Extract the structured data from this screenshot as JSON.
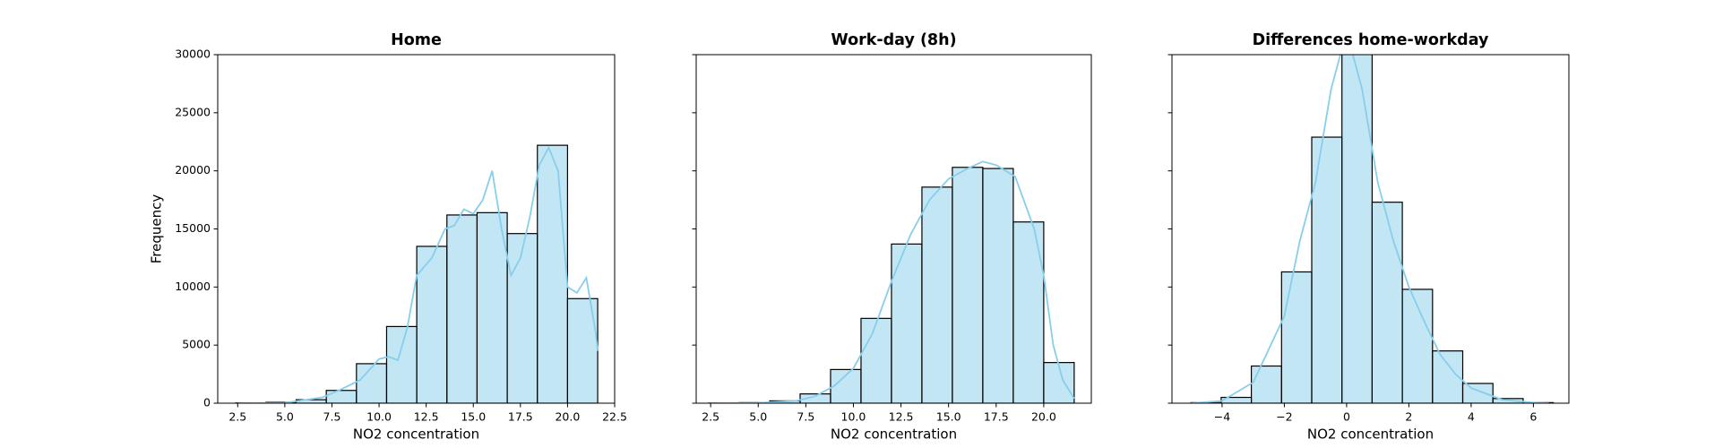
{
  "chart_data": [
    {
      "type": "histogram",
      "title": "Home",
      "xlabel": "NO2 concentration",
      "ylabel": "Frequency",
      "bins": [
        2.4,
        4.0,
        5.6,
        7.2,
        8.8,
        10.4,
        12.0,
        13.6,
        15.2,
        16.8,
        18.4,
        20.0,
        21.6
      ],
      "values": [
        20,
        80,
        300,
        1100,
        3400,
        6600,
        13500,
        16200,
        16400,
        14600,
        22200,
        9000
      ],
      "kde": {
        "x": [
          2.5,
          5,
          7,
          8,
          9,
          10,
          10.5,
          11,
          11.5,
          12,
          12.8,
          13.5,
          14,
          14.5,
          15,
          15.5,
          16,
          16.5,
          17,
          17.5,
          18,
          18.5,
          19,
          19.5,
          20,
          20.5,
          21,
          21.5,
          21.6
        ],
        "values": [
          0,
          30,
          500,
          1200,
          2000,
          3800,
          4000,
          3700,
          6500,
          11000,
          12500,
          15000,
          15300,
          16700,
          16300,
          17500,
          20000,
          15000,
          11000,
          12500,
          16000,
          20500,
          22000,
          20000,
          10000,
          9500,
          10800,
          6000,
          4500
        ]
      },
      "color": "#87ceeb",
      "edge_color": "#000000",
      "line_color": "#87ceeb",
      "xlim": [
        1.44,
        22.5
      ],
      "ylim": [
        0,
        30000
      ],
      "xticks": [
        2.5,
        {
          "value": 5,
          "label": "5.0"
        },
        7.5,
        {
          "value": 10,
          "label": "10.0"
        },
        12.5,
        {
          "value": 15,
          "label": "15.0"
        },
        17.5,
        {
          "value": 20,
          "label": "20.0"
        },
        22.5
      ],
      "yticks": [
        0,
        5000,
        10000,
        15000,
        20000,
        25000,
        30000
      ],
      "show_ytick_labels": true
    },
    {
      "type": "histogram",
      "title": "Work-day (8h)",
      "xlabel": "NO2 concentration",
      "bins": [
        2.4,
        4.0,
        5.6,
        7.2,
        8.8,
        10.4,
        12.0,
        13.6,
        15.2,
        16.8,
        18.4,
        20.0,
        21.6
      ],
      "values": [
        10,
        50,
        200,
        800,
        2900,
        7300,
        13700,
        18600,
        20300,
        20200,
        15600,
        3500
      ],
      "kde": {
        "x": [
          2.5,
          5,
          7,
          8,
          9,
          10,
          11,
          12,
          13,
          14,
          15,
          16,
          16.8,
          17.5,
          18.5,
          19.5,
          20,
          20.5,
          21,
          21.6
        ],
        "values": [
          0,
          20,
          200,
          600,
          1500,
          3000,
          6000,
          10500,
          14500,
          17500,
          19300,
          20200,
          20800,
          20500,
          19500,
          15000,
          11000,
          5000,
          2000,
          400
        ]
      },
      "color": "#87ceeb",
      "edge_color": "#000000",
      "line_color": "#87ceeb",
      "xlim": [
        1.74,
        22.5
      ],
      "ylim": [
        0,
        30000
      ],
      "xticks": [
        2.5,
        {
          "value": 5,
          "label": "5.0"
        },
        7.5,
        {
          "value": 10,
          "label": "10.0"
        },
        12.5,
        {
          "value": 15,
          "label": "15.0"
        },
        17.5,
        {
          "value": 20,
          "label": "20.0"
        }
      ],
      "yticks": [
        0,
        5000,
        10000,
        15000,
        20000,
        25000,
        30000
      ],
      "show_ytick_labels": false
    },
    {
      "type": "histogram",
      "title": "Differences home-workday",
      "xlabel": "NO2 concentration",
      "bins": [
        -5.0,
        -4.03,
        -3.06,
        -2.09,
        -1.12,
        -0.15,
        0.82,
        1.79,
        2.76,
        3.73,
        4.7,
        5.67,
        6.64
      ],
      "values": [
        50,
        500,
        3200,
        11300,
        22900,
        32000,
        17300,
        9800,
        4500,
        1700,
        400,
        50
      ],
      "kde": {
        "x": [
          -5,
          -4,
          -3,
          -2,
          -1.5,
          -1,
          -0.5,
          0,
          0.5,
          1,
          1.5,
          2,
          2.5,
          3,
          3.5,
          4,
          5,
          6,
          6.5
        ],
        "values": [
          0,
          200,
          1800,
          7500,
          14000,
          19000,
          27000,
          32000,
          27000,
          19000,
          14000,
          10000,
          7000,
          4200,
          2500,
          1300,
          300,
          50,
          0
        ]
      },
      "color": "#87ceeb",
      "edge_color": "#000000",
      "line_color": "#87ceeb",
      "xlim": [
        -5.61,
        7.14
      ],
      "ylim": [
        0,
        30000
      ],
      "xticks": [
        {
          "value": -4,
          "label": "−4"
        },
        {
          "value": -2,
          "label": "−2"
        },
        0,
        2,
        4,
        6
      ],
      "yticks": [
        0,
        5000,
        10000,
        15000,
        20000,
        25000,
        30000
      ],
      "show_ytick_labels": false
    }
  ]
}
